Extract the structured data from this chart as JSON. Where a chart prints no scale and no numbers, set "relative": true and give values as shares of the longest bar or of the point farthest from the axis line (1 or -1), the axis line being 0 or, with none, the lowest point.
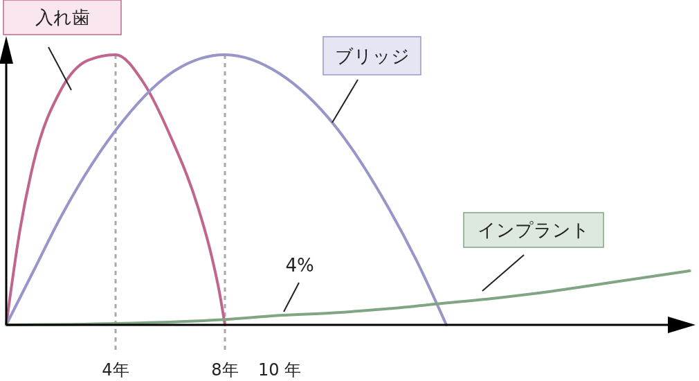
{
  "chart_data": {
    "type": "line",
    "relative": true,
    "xlim": [
      0,
      25
    ],
    "xticks": [
      {
        "value": 4,
        "label": "4年"
      },
      {
        "value": 8,
        "label": "8年"
      },
      {
        "value": 10,
        "label": "10 年"
      }
    ],
    "tick_labels": "x",
    "line_style": "solid",
    "series": [
      {
        "name": "入れ歯",
        "color": "#c0668e",
        "x": [
          0,
          0.5,
          1,
          2,
          3,
          4,
          5,
          6,
          7,
          7.5,
          7.8,
          8
        ],
        "values": [
          0,
          0.35,
          0.6,
          0.87,
          0.98,
          1,
          0.9,
          0.7,
          0.44,
          0.26,
          0.12,
          0
        ]
      },
      {
        "name": "ブリッジ",
        "color": "#9896c8",
        "x": [
          0,
          1,
          2,
          4,
          6,
          8,
          10,
          12,
          14,
          15,
          16.1
        ],
        "values": [
          0,
          0.2,
          0.4,
          0.72,
          0.93,
          1,
          0.93,
          0.74,
          0.43,
          0.24,
          0
        ]
      },
      {
        "name": "インプラント",
        "color": "#7fa582",
        "x": [
          0,
          4,
          8,
          10,
          12,
          14,
          16,
          18,
          20,
          22,
          25
        ],
        "values": [
          0,
          0.005,
          0.02,
          0.035,
          0.045,
          0.06,
          0.08,
          0.1,
          0.125,
          0.155,
          0.2
        ]
      }
    ],
    "ref_lines": [
      {
        "axis": "x",
        "value": 4,
        "color": "#aaaaaa",
        "line_style": "dashed"
      },
      {
        "axis": "x",
        "value": 8,
        "color": "#aaaaaa",
        "line_style": "dashed"
      }
    ],
    "annotations": [
      "4%"
    ]
  }
}
